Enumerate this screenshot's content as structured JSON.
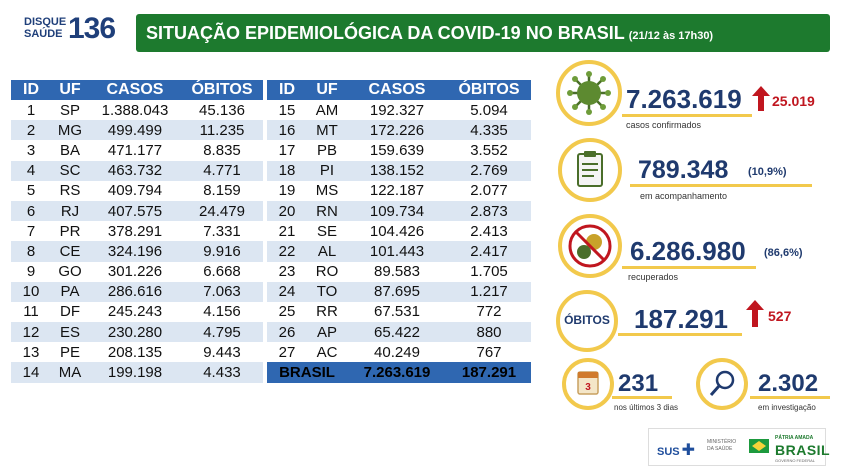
{
  "header": {
    "logo_top": "DISQUE",
    "logo_bottom": "SAÚDE",
    "logo_number": "136",
    "title": "SITUAÇÃO EPIDEMIOLÓGICA DA COVID-19 NO BRASIL",
    "subtitle": "(21/12 às 17h30)"
  },
  "columns": [
    "ID",
    "UF",
    "CASOS",
    "ÓBITOS"
  ],
  "table_left": [
    [
      "1",
      "SP",
      "1.388.043",
      "45.136"
    ],
    [
      "2",
      "MG",
      "499.499",
      "11.235"
    ],
    [
      "3",
      "BA",
      "471.177",
      "8.835"
    ],
    [
      "4",
      "SC",
      "463.732",
      "4.771"
    ],
    [
      "5",
      "RS",
      "409.794",
      "8.159"
    ],
    [
      "6",
      "RJ",
      "407.575",
      "24.479"
    ],
    [
      "7",
      "PR",
      "378.291",
      "7.331"
    ],
    [
      "8",
      "CE",
      "324.196",
      "9.916"
    ],
    [
      "9",
      "GO",
      "301.226",
      "6.668"
    ],
    [
      "10",
      "PA",
      "286.616",
      "7.063"
    ],
    [
      "11",
      "DF",
      "245.243",
      "4.156"
    ],
    [
      "12",
      "ES",
      "230.280",
      "4.795"
    ],
    [
      "13",
      "PE",
      "208.135",
      "9.443"
    ],
    [
      "14",
      "MA",
      "199.198",
      "4.433"
    ]
  ],
  "table_right": [
    [
      "15",
      "AM",
      "192.327",
      "5.094"
    ],
    [
      "16",
      "MT",
      "172.226",
      "4.335"
    ],
    [
      "17",
      "PB",
      "159.639",
      "3.552"
    ],
    [
      "18",
      "PI",
      "138.152",
      "2.769"
    ],
    [
      "19",
      "MS",
      "122.187",
      "2.077"
    ],
    [
      "20",
      "RN",
      "109.734",
      "2.873"
    ],
    [
      "21",
      "SE",
      "104.426",
      "2.413"
    ],
    [
      "22",
      "AL",
      "101.443",
      "2.417"
    ],
    [
      "23",
      "RO",
      "89.583",
      "1.705"
    ],
    [
      "24",
      "TO",
      "87.695",
      "1.217"
    ],
    [
      "25",
      "RR",
      "67.531",
      "772"
    ],
    [
      "26",
      "AP",
      "65.422",
      "880"
    ],
    [
      "27",
      "AC",
      "40.249",
      "767"
    ]
  ],
  "total": {
    "label": "BRASIL",
    "casos": "7.263.619",
    "obitos": "187.291"
  },
  "stats": {
    "confirmed": {
      "value": "7.263.619",
      "increase": "25.019",
      "label": "casos confirmados",
      "icon": "virus-icon"
    },
    "monitoring": {
      "value": "789.348",
      "pct": "(10,9%)",
      "label": "em acompanhamento",
      "icon": "clipboard-icon"
    },
    "recovered": {
      "value": "6.286.980",
      "pct": "(86,6%)",
      "label": "recuperados",
      "icon": "no-virus-icon"
    },
    "deaths": {
      "badge": "ÓBITOS",
      "value": "187.291",
      "increase": "527"
    },
    "recent": {
      "value": "231",
      "label": "nos últimos 3 dias",
      "badge": "3",
      "icon": "calendar-icon"
    },
    "investigation": {
      "value": "2.302",
      "label": "em investigação",
      "icon": "magnifier-icon"
    }
  },
  "footer": {
    "sus": "SUS",
    "ministerio": "MINISTÉRIO DA SAÚDE",
    "patria": "PÁTRIA AMADA",
    "brasil": "BRASIL",
    "gov": "GOVERNO FEDERAL"
  },
  "colors": {
    "header_green": "#1d7a2e",
    "table_blue": "#2f67b1",
    "row_alt": "#dce6f2",
    "accent_yellow": "#f2c94c",
    "increase_red": "#c0161f",
    "number_navy": "#1f3a6e"
  }
}
